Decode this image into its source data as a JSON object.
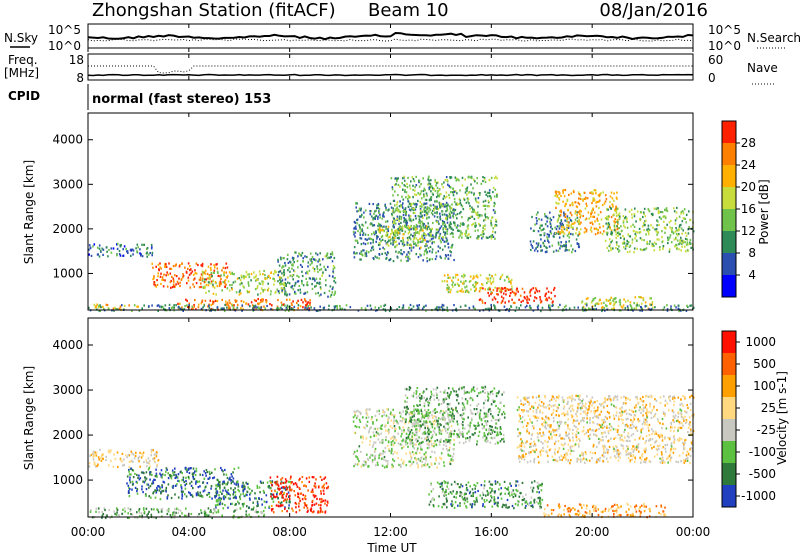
{
  "header": {
    "title": "Zhongshan Station (fitACF)",
    "beam": "Beam 10",
    "date": "08/Jan/2016"
  },
  "noise_panel": {
    "left_label": "N.Sky",
    "right_label": "N.Search",
    "top_tick": "10^5",
    "bottom_tick": "10^0"
  },
  "freq_panel": {
    "left_label_1": "Freq.",
    "left_label_2": "[MHz]",
    "right_label": "Nave",
    "left_ticks": [
      "18",
      "8"
    ],
    "right_ticks": [
      "60",
      "0"
    ]
  },
  "cpid": {
    "label": "CPID",
    "mode": "normal (fast stereo) 153"
  },
  "x_axis": {
    "ticks": [
      "00:00",
      "04:00",
      "08:00",
      "12:00",
      "16:00",
      "20:00",
      "00:00"
    ],
    "label": "Time UT"
  },
  "chart_data": [
    {
      "type": "heatmap",
      "xlabel": "Time UT",
      "ylabel": "Slant Range [km]",
      "xlim": [
        0,
        24
      ],
      "ylim": [
        180,
        4600
      ],
      "y_ticks": [
        1000,
        2000,
        3000,
        4000
      ],
      "colorbar": {
        "label": "Power [dB]",
        "ticks": [
          "4",
          "8",
          "12",
          "16",
          "20",
          "24",
          "28"
        ],
        "range": [
          0,
          30
        ],
        "colors": [
          "#0000ff",
          "#2a4fb0",
          "#2e8b57",
          "#6fc24a",
          "#c8dc3c",
          "#ffb000",
          "#ff8000",
          "#ff2000"
        ]
      },
      "regions": [
        {
          "t0": 0.0,
          "t1": 2.6,
          "r0": 1400,
          "r1": 1700,
          "level": 0.25
        },
        {
          "t0": 0.2,
          "t1": 2.0,
          "r0": 200,
          "r1": 330,
          "level": 0.7
        },
        {
          "t0": 2.5,
          "t1": 5.5,
          "r0": 700,
          "r1": 1250,
          "level": 0.85
        },
        {
          "t0": 4.5,
          "t1": 7.8,
          "r0": 550,
          "r1": 1100,
          "level": 0.5
        },
        {
          "t0": 3.5,
          "t1": 8.8,
          "r0": 200,
          "r1": 450,
          "level": 0.8
        },
        {
          "t0": 7.5,
          "t1": 9.8,
          "r0": 500,
          "r1": 1500,
          "level": 0.35
        },
        {
          "t0": 10.5,
          "t1": 14.5,
          "r0": 1300,
          "r1": 2600,
          "level": 0.3
        },
        {
          "t0": 11.5,
          "t1": 13.5,
          "r0": 1600,
          "r1": 2100,
          "level": 0.55
        },
        {
          "t0": 12.0,
          "t1": 16.2,
          "r0": 1800,
          "r1": 3200,
          "level": 0.4
        },
        {
          "t0": 14.0,
          "t1": 16.8,
          "r0": 600,
          "r1": 1000,
          "level": 0.55
        },
        {
          "t0": 15.5,
          "t1": 18.5,
          "r0": 350,
          "r1": 700,
          "level": 0.95
        },
        {
          "t0": 17.5,
          "t1": 19.5,
          "r0": 1500,
          "r1": 2400,
          "level": 0.3
        },
        {
          "t0": 18.5,
          "t1": 21.0,
          "r0": 1900,
          "r1": 2900,
          "level": 0.7
        },
        {
          "t0": 20.5,
          "t1": 24.0,
          "r0": 1500,
          "r1": 2500,
          "level": 0.45
        },
        {
          "t0": 19.5,
          "t1": 22.5,
          "r0": 200,
          "r1": 500,
          "level": 0.55
        },
        {
          "t0": 0.0,
          "t1": 24.0,
          "r0": 180,
          "r1": 320,
          "level": 0.3
        }
      ]
    },
    {
      "type": "heatmap",
      "xlabel": "Time UT",
      "ylabel": "Slant Range [km]",
      "xlim": [
        0,
        24
      ],
      "ylim": [
        180,
        4600
      ],
      "y_ticks": [
        1000,
        2000,
        3000,
        4000
      ],
      "colorbar": {
        "label": "Velocity [m s-1]",
        "ticks": [
          "1000",
          "500",
          "100",
          "25",
          "-25",
          "-100",
          "-500",
          "-1000"
        ],
        "range": [
          -1000,
          1000
        ],
        "colors": [
          "#2040c0",
          "#2e7a3a",
          "#5cc040",
          "#c8c8c0",
          "#ffd880",
          "#ffa000",
          "#ff6000",
          "#ff1000"
        ]
      },
      "regions": [
        {
          "t0": 0.0,
          "t1": 2.8,
          "r0": 1300,
          "r1": 1700,
          "level": 0.55
        },
        {
          "t0": 1.5,
          "t1": 6.0,
          "r0": 600,
          "r1": 1300,
          "level": 0.15
        },
        {
          "t0": 5.0,
          "t1": 8.0,
          "r0": 400,
          "r1": 1000,
          "level": 0.2
        },
        {
          "t0": 7.2,
          "t1": 9.5,
          "r0": 300,
          "r1": 1100,
          "level": 0.9
        },
        {
          "t0": 0.0,
          "t1": 7.0,
          "r0": 180,
          "r1": 400,
          "level": 0.3
        },
        {
          "t0": 10.5,
          "t1": 14.5,
          "r0": 1300,
          "r1": 2600,
          "level": 0.42
        },
        {
          "t0": 12.5,
          "t1": 16.5,
          "r0": 1800,
          "r1": 3100,
          "level": 0.3
        },
        {
          "t0": 13.5,
          "t1": 18.0,
          "r0": 400,
          "r1": 1000,
          "level": 0.25
        },
        {
          "t0": 17.0,
          "t1": 24.0,
          "r0": 1400,
          "r1": 2900,
          "level": 0.53
        },
        {
          "t0": 18.0,
          "t1": 23.0,
          "r0": 200,
          "r1": 500,
          "level": 0.7
        }
      ]
    }
  ]
}
